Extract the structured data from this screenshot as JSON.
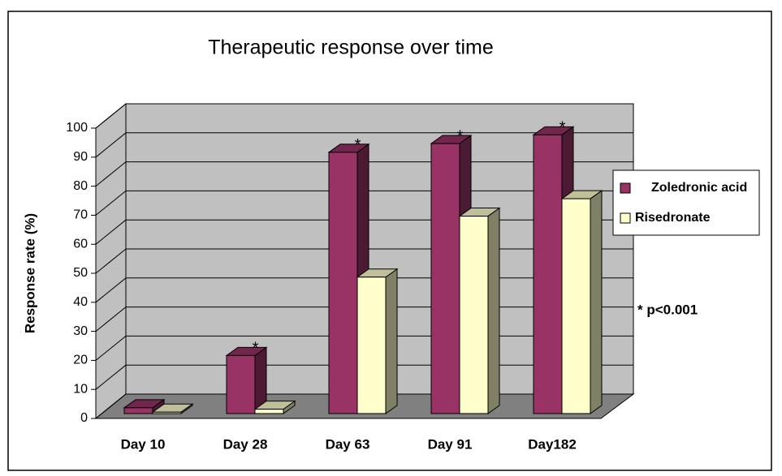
{
  "chart_data": {
    "type": "bar3d",
    "title": "Therapeutic response over time",
    "y_label": "Response rate (%)",
    "categories": [
      "Day 10",
      "Day 28",
      "Day 63",
      "Day 91",
      "Day182"
    ],
    "series": [
      {
        "name": "Zoledronic acid",
        "color": "#993366",
        "values": [
          2,
          20,
          90,
          93,
          96
        ]
      },
      {
        "name": "Risedronate",
        "color": "#ffffcc",
        "values": [
          0.5,
          1.5,
          47,
          68,
          74
        ]
      }
    ],
    "significance_marks": [
      null,
      "*",
      "*",
      "*",
      "*"
    ],
    "note": "* p<0.001",
    "ylim": [
      0,
      100
    ],
    "yticks": [
      0,
      10,
      20,
      30,
      40,
      50,
      60,
      70,
      80,
      90,
      100
    ],
    "grid": true,
    "legend": "right"
  }
}
